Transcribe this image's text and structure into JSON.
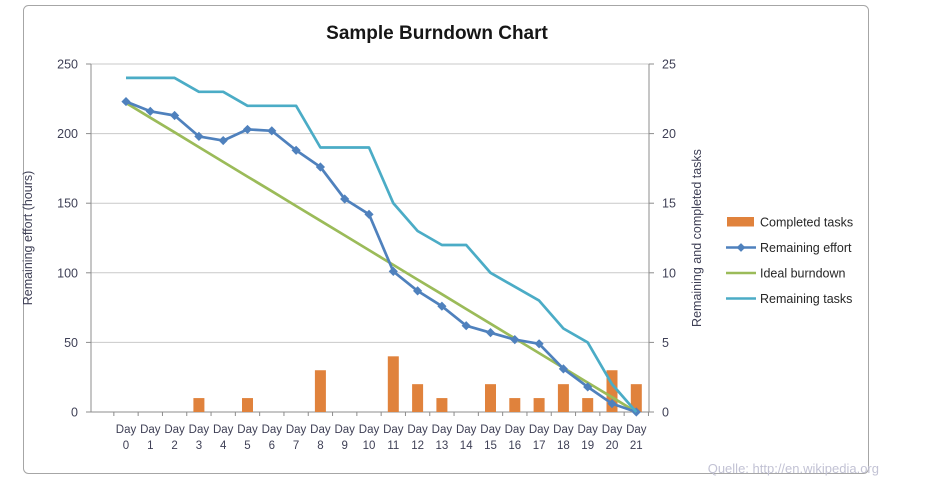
{
  "window": {
    "footer_credit": "Quelle: http://en.wikipedia.org"
  },
  "chart_data": {
    "type": "combo",
    "title": "Sample Burndown Chart",
    "grid": true,
    "legend_position": "right",
    "colors": {
      "grid": "#C9C9C9",
      "axis": "#8C8C8C",
      "tick_text": "#3F4056",
      "title_text": "#161616",
      "footer_text": "#C2C2D4",
      "frame_border": "#A6A6A6",
      "background": "#FFFFFF"
    },
    "x_categories": [
      "Day 0",
      "Day 1",
      "Day 2",
      "Day 3",
      "Day 4",
      "Day 5",
      "Day 6",
      "Day 7",
      "Day 8",
      "Day 9",
      "Day 10",
      "Day 11",
      "Day 12",
      "Day 13",
      "Day 14",
      "Day 15",
      "Day 16",
      "Day 17",
      "Day 18",
      "Day 19",
      "Day 20",
      "Day 21"
    ],
    "left_axis": {
      "label": "Remaining effort (hours)",
      "ticks": [
        0,
        50,
        100,
        150,
        200,
        250
      ],
      "range": [
        0,
        250
      ]
    },
    "right_axis": {
      "label": "Remaining and completed tasks",
      "ticks": [
        0,
        5,
        10,
        15,
        20,
        25
      ],
      "range": [
        0,
        25
      ]
    },
    "series": [
      {
        "name": "Completed tasks",
        "type": "bar",
        "axis": "right",
        "color": "#E0823C",
        "values": [
          0,
          0,
          0,
          1,
          0,
          1,
          0,
          0,
          3,
          0,
          0,
          4,
          2,
          1,
          0,
          2,
          1,
          1,
          2,
          1,
          3,
          2
        ]
      },
      {
        "name": "Remaining effort",
        "type": "line",
        "marker": "diamond",
        "axis": "left",
        "color": "#4F81BD",
        "values": [
          223,
          216,
          213,
          198,
          195,
          203,
          202,
          188,
          176,
          153,
          142,
          101,
          87,
          76,
          62,
          57,
          52,
          49,
          31,
          18,
          6,
          0
        ]
      },
      {
        "name": "Ideal burndown",
        "type": "line",
        "marker": "none",
        "axis": "left",
        "color": "#9BBB59",
        "values": [
          222,
          211.4,
          200.9,
          190.3,
          179.7,
          169.1,
          158.6,
          148,
          137.4,
          126.9,
          116.3,
          105.7,
          95.1,
          84.6,
          74,
          63.4,
          52.9,
          42.3,
          31.7,
          21.1,
          10.6,
          0
        ]
      },
      {
        "name": "Remaining tasks",
        "type": "line",
        "marker": "none",
        "axis": "right",
        "color": "#4BACC6",
        "values": [
          24,
          24,
          24,
          23,
          23,
          22,
          22,
          22,
          19,
          19,
          19,
          15,
          13,
          12,
          12,
          10,
          9,
          8,
          6,
          5,
          2,
          0
        ]
      }
    ]
  }
}
